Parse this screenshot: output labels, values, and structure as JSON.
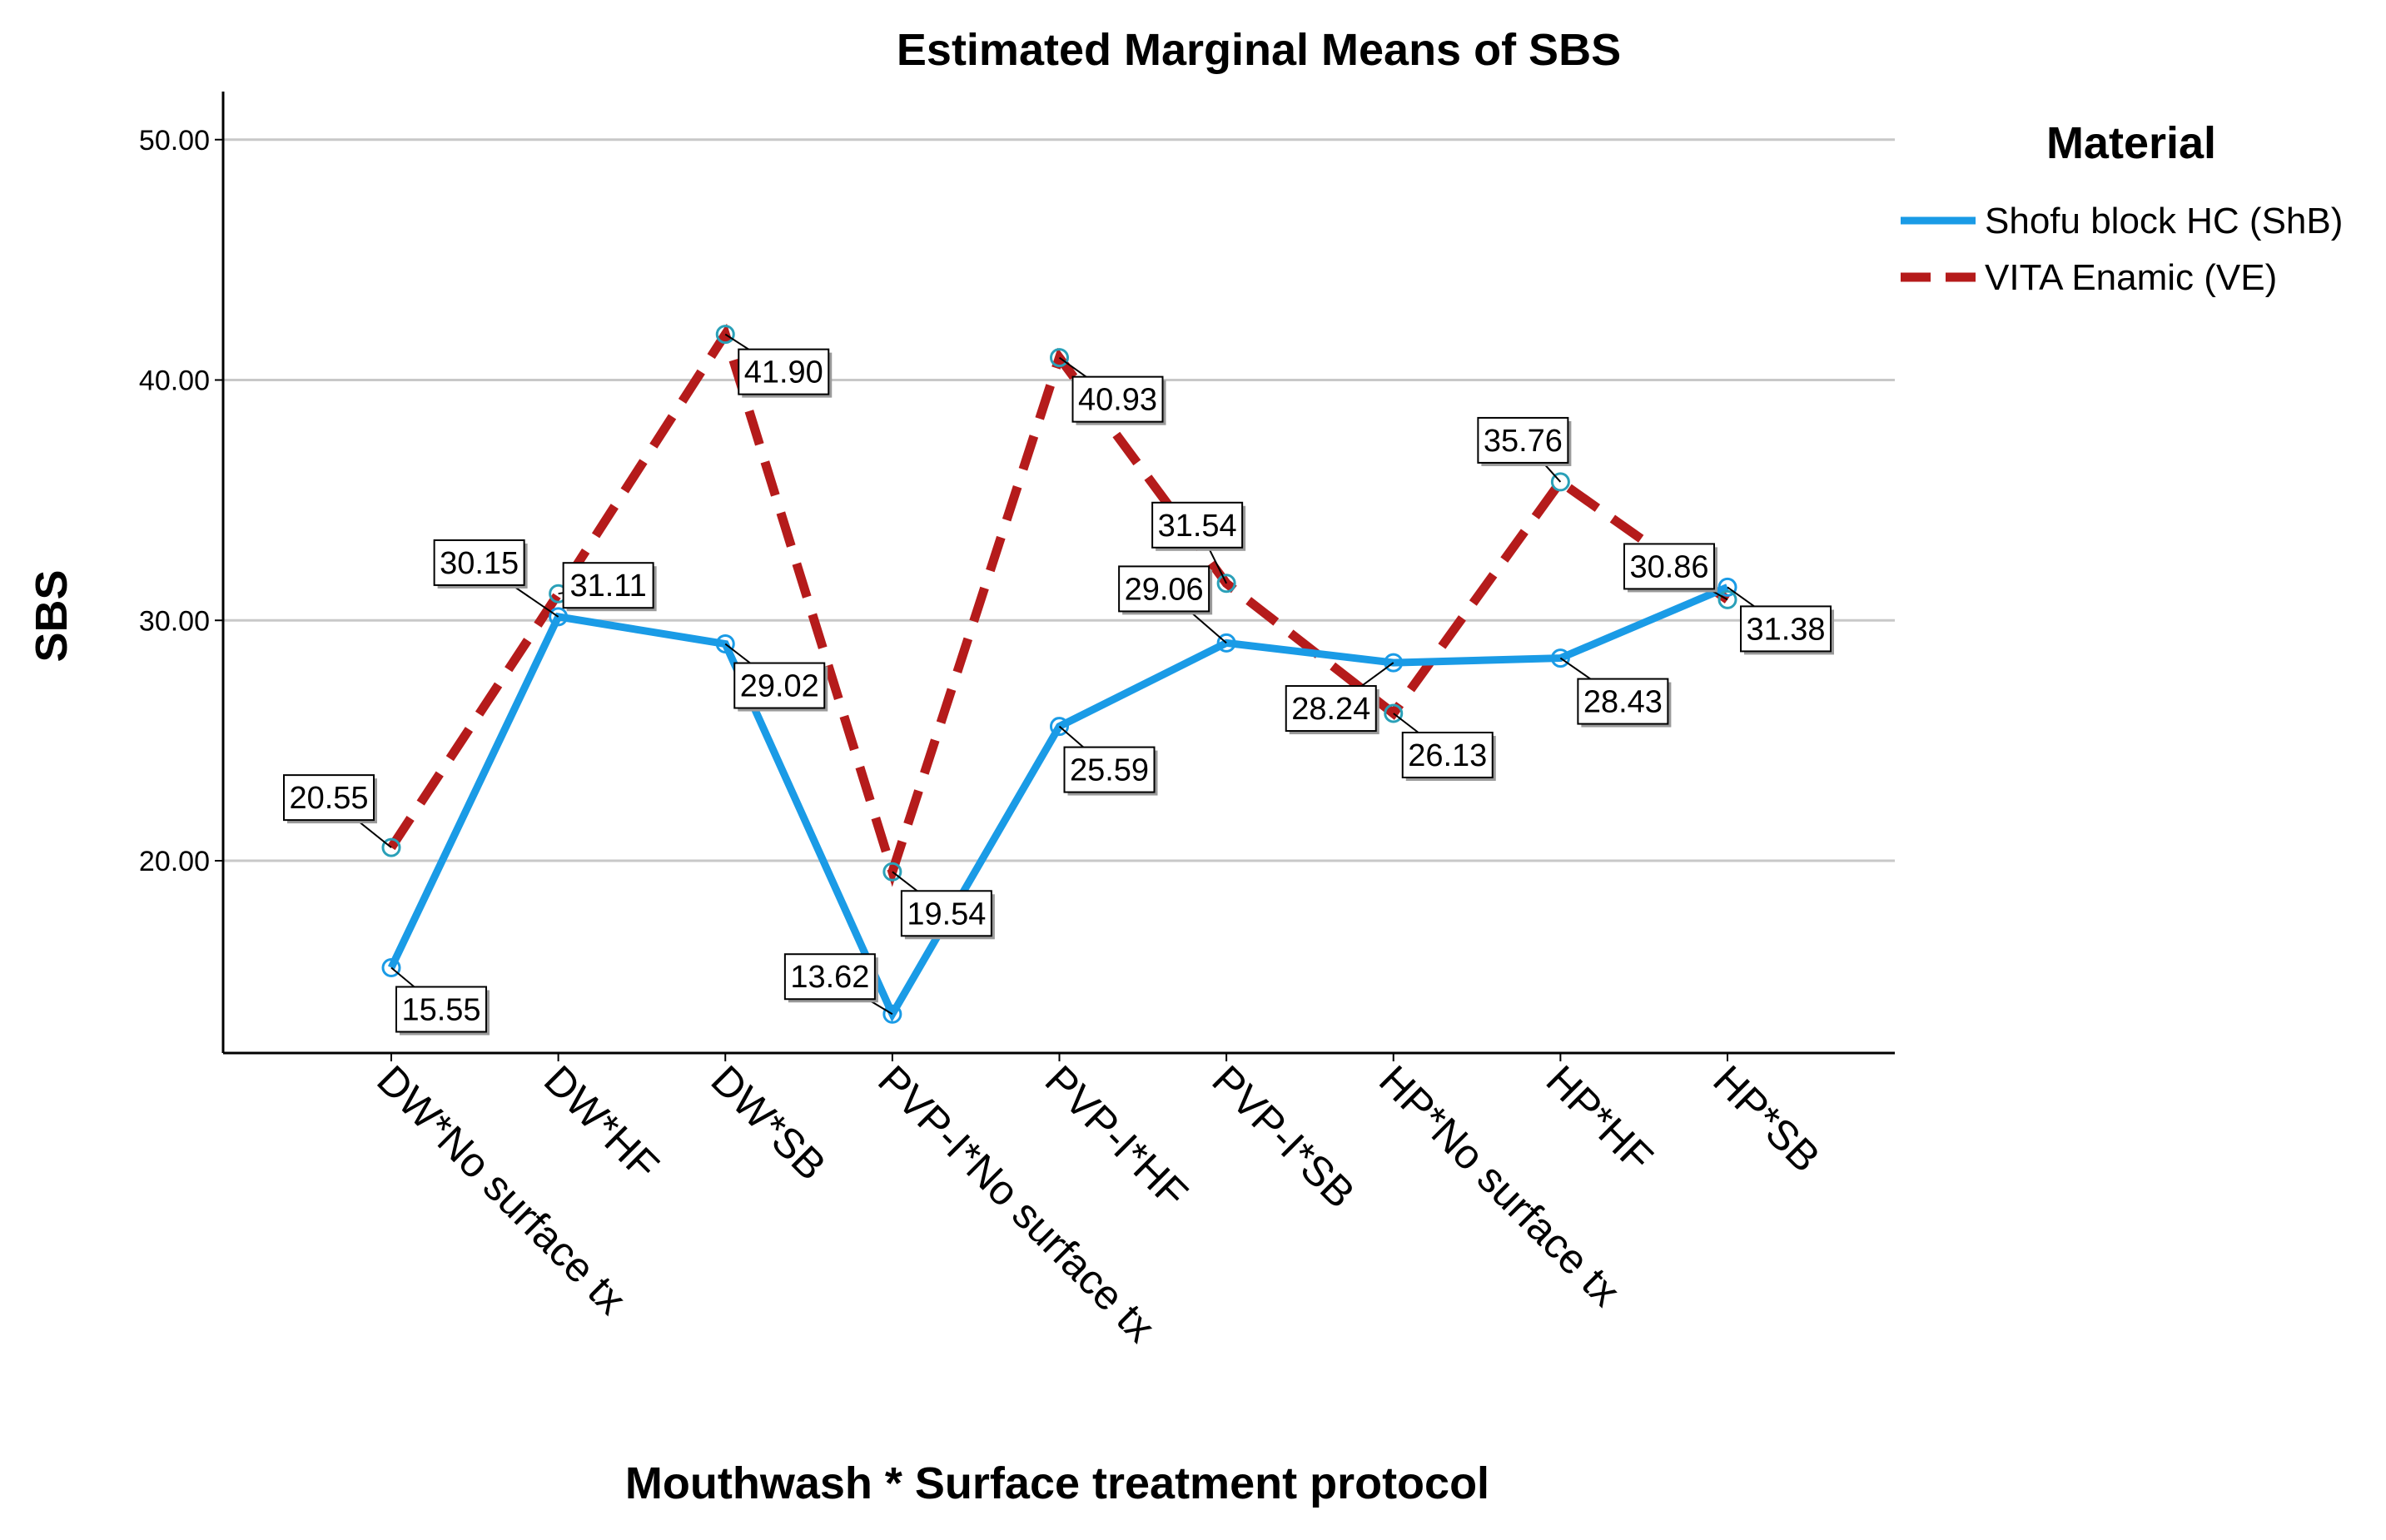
{
  "chart_data": {
    "type": "line",
    "title": "Estimated Marginal Means of SBS",
    "xlabel": "Mouthwash * Surface treatment protocol",
    "ylabel": "SBS",
    "ylim": [
      12,
      52
    ],
    "yticks": [
      "20.00",
      "30.00",
      "40.00",
      "50.00"
    ],
    "grid": true,
    "legend_title": "Material",
    "legend_position": "right",
    "categories": [
      "DW*No surface tx",
      "DW*HF",
      "DW*SB",
      "PVP-I*No surface tx",
      "PVP-I*HF",
      "PVP-I*SB",
      "HP*No surface tx",
      "HP*HF",
      "HP*SB"
    ],
    "series": [
      {
        "name": "Shofu block HC (ShB)",
        "color": "#1a9be6",
        "style": "solid",
        "values": [
          15.55,
          30.15,
          29.02,
          13.62,
          25.59,
          29.06,
          28.24,
          28.43,
          31.38
        ],
        "labels": [
          "15.55",
          "30.15",
          "29.02",
          "13.62",
          "25.59",
          "29.06",
          "28.24",
          "28.43",
          "31.38"
        ]
      },
      {
        "name": "VITA Enamic (VE)",
        "color": "#b51b1b",
        "style": "dashed",
        "values": [
          20.55,
          31.11,
          41.9,
          19.54,
          40.93,
          31.54,
          26.13,
          35.76,
          30.86
        ],
        "labels": [
          "20.55",
          "31.11",
          "41.90",
          "19.54",
          "40.93",
          "31.54",
          "26.13",
          "35.76",
          "30.86"
        ]
      }
    ]
  }
}
